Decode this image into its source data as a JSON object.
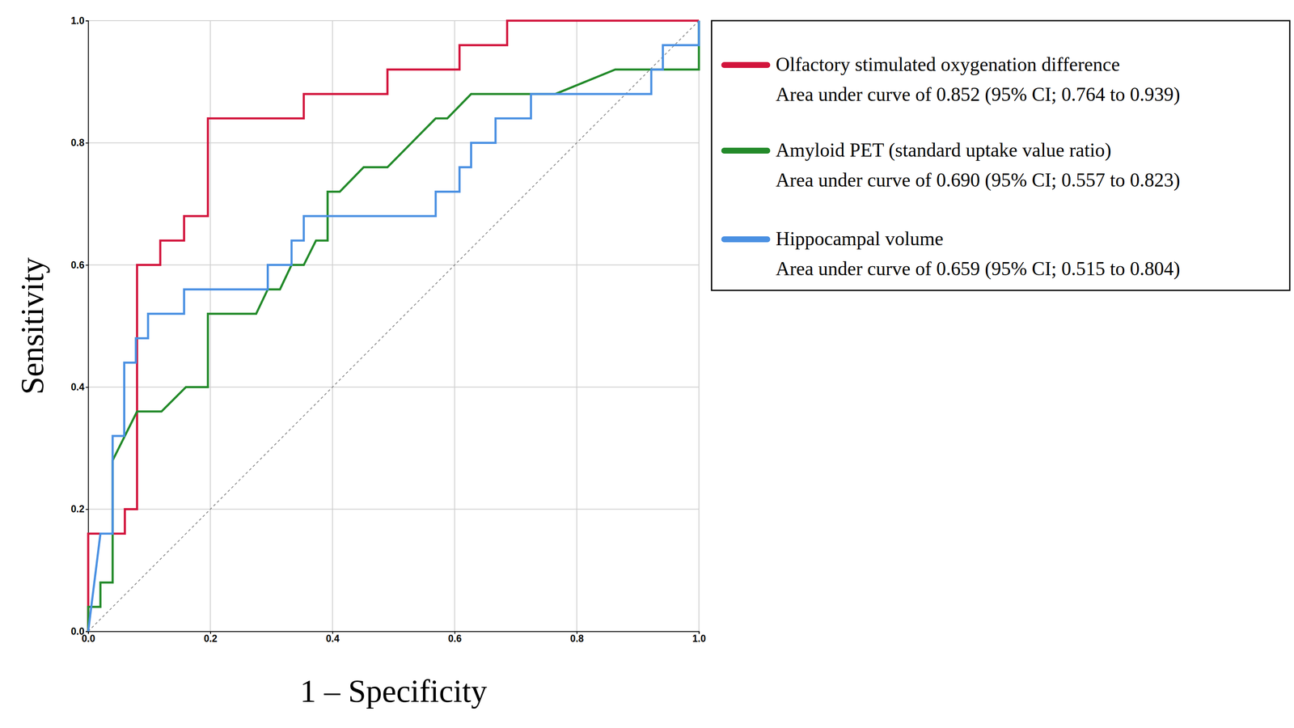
{
  "chart_data": {
    "type": "line",
    "x_label": "1 – Specificity",
    "y_label": "Sensitivity",
    "xlim": [
      0,
      1
    ],
    "ylim": [
      0,
      1
    ],
    "xticks": [
      {
        "value": 0,
        "label": "0.0"
      },
      {
        "value": 0.2,
        "label": "0.2"
      },
      {
        "value": 0.4,
        "label": "0.4"
      },
      {
        "value": 0.6,
        "label": "0.6"
      },
      {
        "value": 0.8,
        "label": "0.8"
      },
      {
        "value": 1,
        "label": "1.0"
      }
    ],
    "yticks": [
      {
        "value": 0,
        "label": "0.0"
      },
      {
        "value": 0.2,
        "label": "0.2"
      },
      {
        "value": 0.4,
        "label": "0.4"
      },
      {
        "value": 0.6,
        "label": "0.6"
      },
      {
        "value": 0.8,
        "label": "0.8"
      },
      {
        "value": 1,
        "label": "1.0"
      }
    ],
    "grid": true,
    "legend": "outside-right",
    "series": [
      {
        "name": "Olfactory stimulated oxygenation difference",
        "detail": "Area under curve of 0.852 (95% CI; 0.764 to 0.939)",
        "color": "#d2143c",
        "x": [
          0,
          0,
          0.06,
          0.06,
          0.08,
          0.08,
          0.118,
          0.118,
          0.157,
          0.157,
          0.196,
          0.196,
          0.353,
          0.353,
          0.49,
          0.49,
          0.608,
          0.608,
          0.686,
          0.686,
          1.0
        ],
        "values": [
          0,
          0.16,
          0.16,
          0.2,
          0.2,
          0.6,
          0.6,
          0.64,
          0.64,
          0.68,
          0.68,
          0.84,
          0.84,
          0.88,
          0.88,
          0.92,
          0.92,
          0.96,
          0.96,
          1.0,
          1.0
        ]
      },
      {
        "name": "Amyloid PET (standard uptake value ratio)",
        "detail": "Area under curve of 0.690 (95% CI; 0.557 to 0.823)",
        "color": "#238a2a",
        "x": [
          0,
          0,
          0.02,
          0.02,
          0.04,
          0.04,
          0.08,
          0.12,
          0.16,
          0.196,
          0.196,
          0.275,
          0.294,
          0.314,
          0.333,
          0.353,
          0.373,
          0.392,
          0.392,
          0.412,
          0.451,
          0.49,
          0.569,
          0.588,
          0.627,
          0.765,
          0.863,
          1.0,
          1.0
        ],
        "values": [
          0,
          0.04,
          0.04,
          0.08,
          0.08,
          0.28,
          0.36,
          0.36,
          0.4,
          0.4,
          0.52,
          0.52,
          0.56,
          0.56,
          0.6,
          0.6,
          0.64,
          0.64,
          0.72,
          0.72,
          0.76,
          0.76,
          0.84,
          0.84,
          0.88,
          0.88,
          0.92,
          0.92,
          1.0
        ]
      },
      {
        "name": "Hippocampal volume",
        "detail": "Area under curve of 0.659 (95% CI; 0.515 to 0.804)",
        "color": "#4a90e2",
        "x": [
          0,
          0.02,
          0.04,
          0.04,
          0.059,
          0.059,
          0.078,
          0.078,
          0.098,
          0.098,
          0.157,
          0.157,
          0.294,
          0.294,
          0.333,
          0.333,
          0.353,
          0.353,
          0.569,
          0.569,
          0.608,
          0.608,
          0.627,
          0.627,
          0.667,
          0.667,
          0.725,
          0.725,
          0.922,
          0.922,
          0.941,
          0.941,
          1.0,
          1.0
        ],
        "values": [
          0,
          0.16,
          0.16,
          0.32,
          0.32,
          0.44,
          0.44,
          0.48,
          0.48,
          0.52,
          0.52,
          0.56,
          0.56,
          0.6,
          0.6,
          0.64,
          0.64,
          0.68,
          0.68,
          0.72,
          0.72,
          0.76,
          0.76,
          0.8,
          0.8,
          0.84,
          0.84,
          0.88,
          0.88,
          0.92,
          0.92,
          0.96,
          0.96,
          1.0
        ]
      }
    ]
  }
}
